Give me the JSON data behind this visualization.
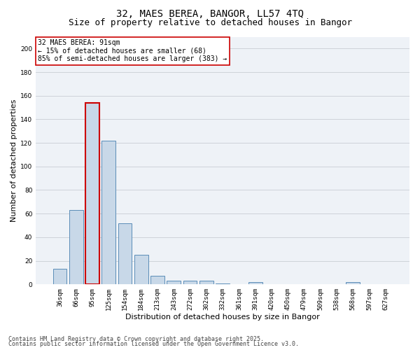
{
  "title_line1": "32, MAES BEREA, BANGOR, LL57 4TQ",
  "title_line2": "Size of property relative to detached houses in Bangor",
  "xlabel": "Distribution of detached houses by size in Bangor",
  "ylabel": "Number of detached properties",
  "categories": [
    "36sqm",
    "66sqm",
    "95sqm",
    "125sqm",
    "154sqm",
    "184sqm",
    "213sqm",
    "243sqm",
    "272sqm",
    "302sqm",
    "332sqm",
    "361sqm",
    "391sqm",
    "420sqm",
    "450sqm",
    "479sqm",
    "509sqm",
    "538sqm",
    "568sqm",
    "597sqm",
    "627sqm"
  ],
  "values": [
    13,
    63,
    154,
    122,
    52,
    25,
    7,
    3,
    3,
    3,
    1,
    0,
    2,
    0,
    0,
    0,
    0,
    0,
    2,
    0,
    0
  ],
  "bar_color": "#c8d8e8",
  "bar_edge_color": "#5b8db8",
  "highlight_bar_index": 2,
  "highlight_bar_edge_color": "#cc0000",
  "annotation_box_text": "32 MAES BEREA: 91sqm\n← 15% of detached houses are smaller (68)\n85% of semi-detached houses are larger (383) →",
  "annotation_box_color": "#ffffff",
  "annotation_box_edge_color": "#cc0000",
  "ylim": [
    0,
    210
  ],
  "yticks": [
    0,
    20,
    40,
    60,
    80,
    100,
    120,
    140,
    160,
    180,
    200
  ],
  "grid_color": "#c8cdd4",
  "background_color": "#eef2f7",
  "footer_line1": "Contains HM Land Registry data © Crown copyright and database right 2025.",
  "footer_line2": "Contains public sector information licensed under the Open Government Licence v3.0.",
  "title_fontsize": 10,
  "subtitle_fontsize": 9,
  "axis_label_fontsize": 8,
  "tick_fontsize": 6.5,
  "annotation_fontsize": 7,
  "footer_fontsize": 6
}
